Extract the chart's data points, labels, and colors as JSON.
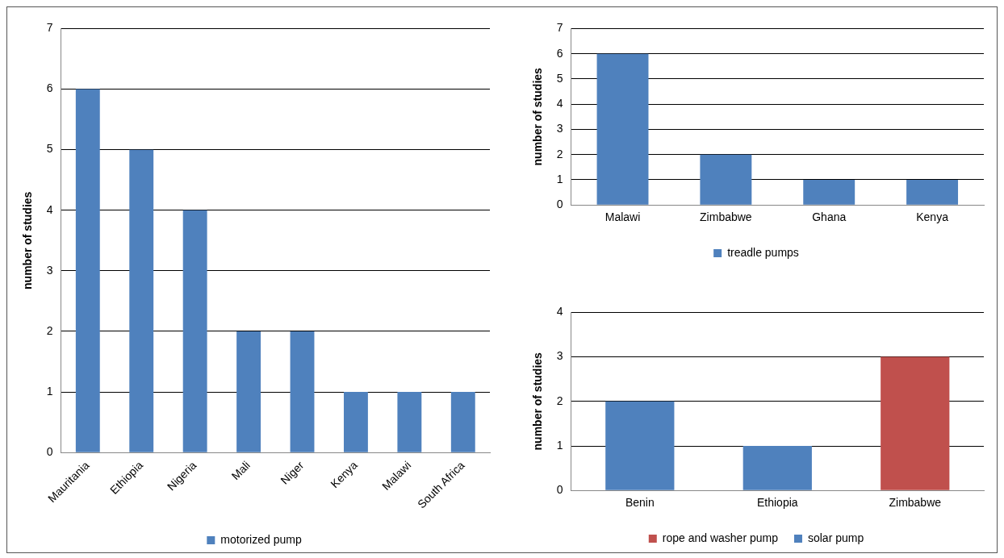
{
  "chart_data": [
    {
      "type": "bar",
      "ylabel": "number of studies",
      "categories": [
        "Mauritania",
        "Ethiopia",
        "Nigeria",
        "Mali",
        "Niger",
        "Kenya",
        "Malawi",
        "South Africa"
      ],
      "series": [
        {
          "name": "motorized pump",
          "color": "#4f81bd",
          "values": [
            6,
            5,
            4,
            2,
            2,
            1,
            1,
            1
          ]
        }
      ],
      "ylim": [
        0,
        7
      ],
      "yticks": [
        0,
        1,
        2,
        3,
        4,
        5,
        6,
        7
      ],
      "grid": "y",
      "legend": "bottom"
    },
    {
      "type": "bar",
      "ylabel": "number of studies",
      "categories": [
        "Malawi",
        "Zimbabwe",
        "Ghana",
        "Kenya"
      ],
      "series": [
        {
          "name": "treadle pumps",
          "color": "#4f81bd",
          "values": [
            6,
            2,
            1,
            1
          ]
        }
      ],
      "ylim": [
        0,
        7
      ],
      "yticks": [
        0,
        1,
        2,
        3,
        4,
        5,
        6,
        7
      ],
      "grid": "y",
      "legend": "bottom"
    },
    {
      "type": "bar",
      "ylabel": "number of studies",
      "categories": [
        "Benin",
        "Ethiopia",
        "Zimbabwe"
      ],
      "series": [
        {
          "name": "rope and washer pump",
          "color": "#c0504d",
          "values": [
            null,
            null,
            3
          ]
        },
        {
          "name": "solar pump",
          "color": "#4f81bd",
          "values": [
            2,
            1,
            null
          ]
        }
      ],
      "ylim": [
        0,
        4
      ],
      "yticks": [
        0,
        1,
        2,
        3,
        4
      ],
      "grid": "y",
      "legend": "bottom"
    }
  ]
}
